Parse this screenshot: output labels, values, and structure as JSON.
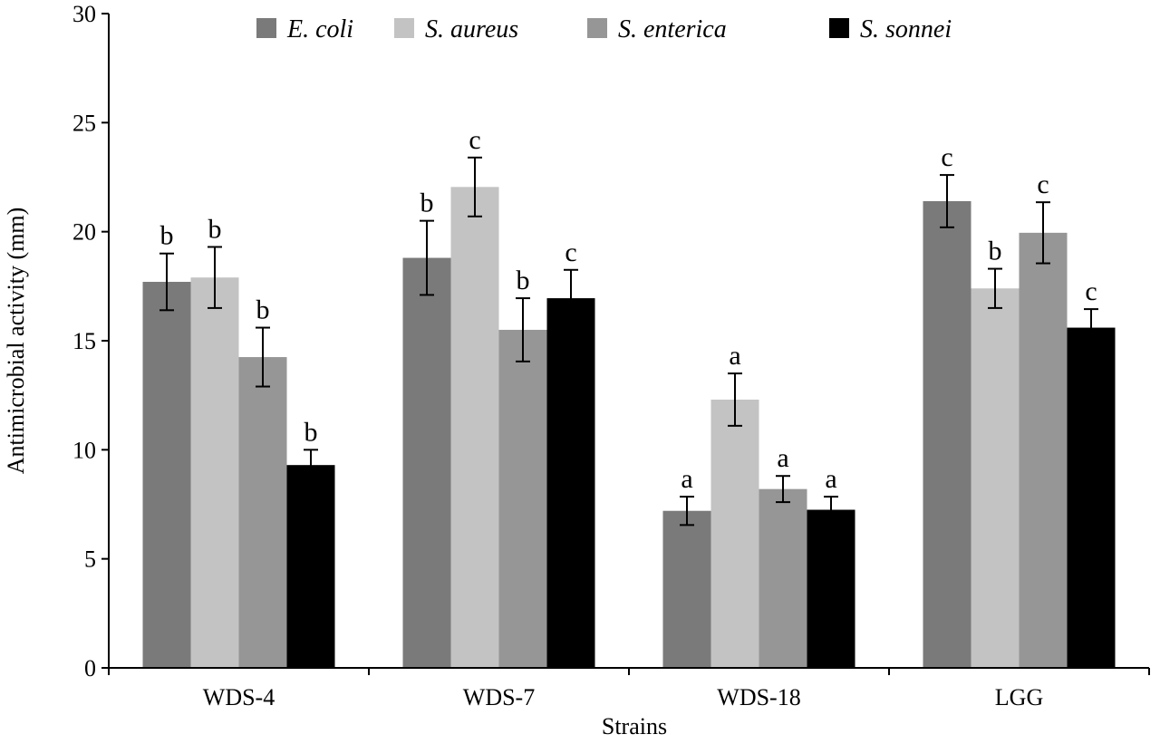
{
  "chart_data": {
    "type": "bar",
    "title": "",
    "xlabel": "Strains",
    "ylabel": "Antimicrobial activity (mm)",
    "ylim": [
      0,
      30
    ],
    "yticks": [
      0,
      5,
      10,
      15,
      20,
      25,
      30
    ],
    "grid": false,
    "legend": "top",
    "categories": [
      "WDS-4",
      "WDS-7",
      "WDS-18",
      "LGG"
    ],
    "series": [
      {
        "name": "E. coli",
        "color": "#7a7a7a",
        "values": [
          17.7,
          18.8,
          7.2,
          21.4
        ],
        "errors": [
          1.3,
          1.7,
          0.65,
          1.2
        ],
        "letters": [
          "b",
          "b",
          "a",
          "c"
        ]
      },
      {
        "name": "S. aureus",
        "color": "#c3c3c3",
        "values": [
          17.9,
          22.05,
          12.3,
          17.4
        ],
        "errors": [
          1.4,
          1.35,
          1.2,
          0.9
        ],
        "letters": [
          "b",
          "c",
          "a",
          "b"
        ]
      },
      {
        "name": "S. enterica",
        "color": "#969696",
        "values": [
          14.25,
          15.5,
          8.2,
          19.95
        ],
        "errors": [
          1.35,
          1.45,
          0.6,
          1.4
        ],
        "letters": [
          "b",
          "b",
          "a",
          "c"
        ]
      },
      {
        "name": "S. sonnei",
        "color": "#000000",
        "values": [
          9.3,
          16.95,
          7.25,
          15.6
        ],
        "errors": [
          0.7,
          1.3,
          0.6,
          0.85
        ],
        "letters": [
          "b",
          "c",
          "a",
          "c"
        ]
      }
    ]
  }
}
